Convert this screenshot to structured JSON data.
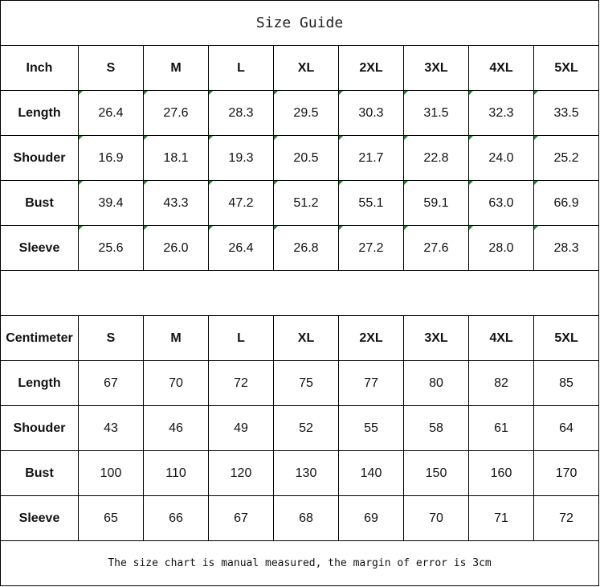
{
  "title": "Size Guide",
  "sizes": [
    "S",
    "M",
    "L",
    "XL",
    "2XL",
    "3XL",
    "4XL",
    "5XL"
  ],
  "inch": {
    "unit_label": "Inch",
    "rows": [
      {
        "label": "Length",
        "values": [
          "26.4",
          "27.6",
          "28.3",
          "29.5",
          "30.3",
          "31.5",
          "32.3",
          "33.5"
        ]
      },
      {
        "label": "Shouder",
        "values": [
          "16.9",
          "18.1",
          "19.3",
          "20.5",
          "21.7",
          "22.8",
          "24.0",
          "25.2"
        ]
      },
      {
        "label": "Bust",
        "values": [
          "39.4",
          "43.3",
          "47.2",
          "51.2",
          "55.1",
          "59.1",
          "63.0",
          "66.9"
        ]
      },
      {
        "label": "Sleeve",
        "values": [
          "25.6",
          "26.0",
          "26.4",
          "26.8",
          "27.2",
          "27.6",
          "28.0",
          "28.3"
        ]
      }
    ]
  },
  "centimeter": {
    "unit_label": "Centimeter",
    "rows": [
      {
        "label": "Length",
        "values": [
          "67",
          "70",
          "72",
          "75",
          "77",
          "80",
          "82",
          "85"
        ]
      },
      {
        "label": "Shouder",
        "values": [
          "43",
          "46",
          "49",
          "52",
          "55",
          "58",
          "61",
          "64"
        ]
      },
      {
        "label": "Bust",
        "values": [
          "100",
          "110",
          "120",
          "130",
          "140",
          "150",
          "160",
          "170"
        ]
      },
      {
        "label": "Sleeve",
        "values": [
          "65",
          "66",
          "67",
          "68",
          "69",
          "70",
          "71",
          "72"
        ]
      }
    ]
  },
  "note": "The size chart is manual measured, the margin of error is 3cm",
  "colors": {
    "cell_marker": "#1a8a1a",
    "border": "#000000"
  }
}
